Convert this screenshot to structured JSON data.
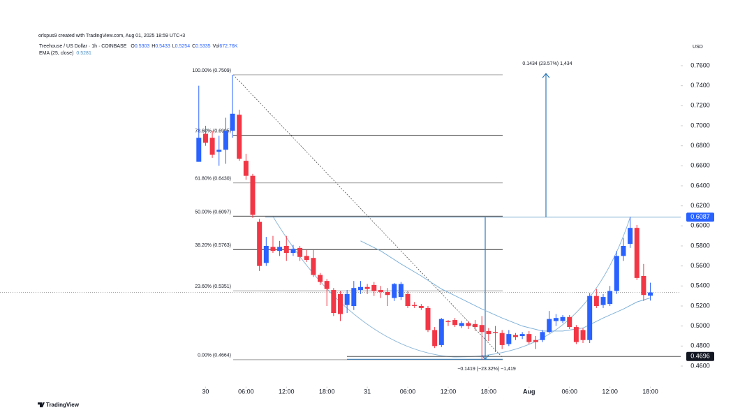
{
  "header": {
    "credit": "orlspus9 created with TradingView.com, Aug 01, 2025 18:59 UTC+3",
    "symbol": "Treehouse / US Dollar · 1h · COINBASE",
    "ohlc": [
      {
        "key": "O",
        "value": "0.5303"
      },
      {
        "key": "H",
        "value": "0.5433"
      },
      {
        "key": "L",
        "value": "0.5254"
      },
      {
        "key": "C",
        "value": "0.5335"
      },
      {
        "key": "Vol",
        "value": "672.76K"
      }
    ],
    "indicator": "EMA (25, close)",
    "indicator_value": "0.5281",
    "currency": "USD"
  },
  "footer": {
    "brand": "TradingView"
  },
  "chart_data": {
    "type": "candlestick",
    "x": [
      -1,
      0,
      1,
      2,
      3,
      4,
      5,
      6,
      7,
      8,
      9,
      10,
      11,
      12,
      13,
      14,
      15,
      16,
      17,
      18,
      19,
      20,
      21,
      22,
      23,
      24,
      25,
      26,
      27,
      28,
      29,
      30,
      31,
      32,
      33,
      34,
      35,
      36,
      37,
      38,
      39,
      40,
      41,
      42,
      43,
      44,
      45,
      46,
      47,
      48,
      49,
      50,
      51,
      52,
      53,
      54,
      55,
      56,
      57,
      58,
      59,
      60,
      61,
      62,
      63,
      64,
      65,
      66
    ],
    "open": [
      0.664,
      0.692,
      0.688,
      0.674,
      0.676,
      0.695,
      0.711,
      0.665,
      0.65,
      0.604,
      0.563,
      0.579,
      0.575,
      0.58,
      0.573,
      0.578,
      0.57,
      0.568,
      0.551,
      0.545,
      0.536,
      0.532,
      0.521,
      0.52,
      0.536,
      0.539,
      0.541,
      0.536,
      0.534,
      0.528,
      0.529,
      0.532,
      0.521,
      0.52,
      0.518,
      0.496,
      0.481,
      0.505,
      0.506,
      0.5,
      0.503,
      0.502,
      0.501,
      0.495,
      0.494,
      0.493,
      0.482,
      0.491,
      0.49,
      0.492,
      0.486,
      0.486,
      0.494,
      0.505,
      0.505,
      0.509,
      0.499,
      0.496,
      0.486,
      0.53,
      0.521,
      0.522,
      0.535,
      0.57,
      0.582,
      0.598,
      0.55,
      0.5303
    ],
    "high": [
      0.74,
      0.7,
      0.695,
      0.69,
      0.708,
      0.7509,
      0.716,
      0.672,
      0.652,
      0.607,
      0.589,
      0.59,
      0.585,
      0.59,
      0.581,
      0.58,
      0.576,
      0.576,
      0.553,
      0.547,
      0.538,
      0.535,
      0.536,
      0.545,
      0.545,
      0.542,
      0.544,
      0.54,
      0.538,
      0.543,
      0.544,
      0.535,
      0.524,
      0.522,
      0.52,
      0.499,
      0.508,
      0.506,
      0.508,
      0.505,
      0.505,
      0.506,
      0.51,
      0.498,
      0.5,
      0.496,
      0.496,
      0.493,
      0.494,
      0.495,
      0.49,
      0.496,
      0.515,
      0.512,
      0.511,
      0.511,
      0.501,
      0.498,
      0.533,
      0.537,
      0.532,
      0.54,
      0.575,
      0.588,
      0.6087,
      0.601,
      0.562,
      0.5433
    ],
    "low": [
      0.664,
      0.68,
      0.668,
      0.66,
      0.662,
      0.688,
      0.665,
      0.646,
      0.608,
      0.555,
      0.56,
      0.573,
      0.57,
      0.565,
      0.57,
      0.565,
      0.564,
      0.549,
      0.541,
      0.52,
      0.51,
      0.505,
      0.513,
      0.516,
      0.532,
      0.532,
      0.53,
      0.528,
      0.52,
      0.525,
      0.526,
      0.518,
      0.518,
      0.516,
      0.494,
      0.478,
      0.479,
      0.5,
      0.499,
      0.498,
      0.497,
      0.495,
      0.4664,
      0.485,
      0.474,
      0.477,
      0.48,
      0.486,
      0.487,
      0.482,
      0.477,
      0.484,
      0.493,
      0.5,
      0.503,
      0.497,
      0.482,
      0.483,
      0.483,
      0.518,
      0.518,
      0.52,
      0.532,
      0.565,
      0.578,
      0.546,
      0.525,
      0.5254
    ],
    "close": [
      0.688,
      0.683,
      0.671,
      0.676,
      0.695,
      0.712,
      0.667,
      0.65,
      0.611,
      0.56,
      0.58,
      0.575,
      0.579,
      0.573,
      0.577,
      0.569,
      0.566,
      0.551,
      0.544,
      0.537,
      0.513,
      0.512,
      0.532,
      0.538,
      0.539,
      0.537,
      0.535,
      0.534,
      0.531,
      0.542,
      0.542,
      0.52,
      0.52,
      0.518,
      0.496,
      0.48,
      0.507,
      0.504,
      0.501,
      0.503,
      0.5,
      0.499,
      0.494,
      0.492,
      0.493,
      0.481,
      0.492,
      0.489,
      0.492,
      0.484,
      0.484,
      0.494,
      0.507,
      0.508,
      0.509,
      0.499,
      0.484,
      0.486,
      0.53,
      0.52,
      0.529,
      0.535,
      0.57,
      0.58,
      0.598,
      0.548,
      0.531,
      0.5335
    ],
    "up_color": "#2962ff",
    "down_color": "#f23645",
    "ema": {
      "color": "#7fb1d9",
      "x": [
        23,
        26,
        29,
        32,
        35,
        38,
        41,
        44,
        47,
        50,
        53,
        56,
        59,
        62,
        64,
        66
      ],
      "values": [
        0.585,
        0.575,
        0.562,
        0.55,
        0.537,
        0.527,
        0.517,
        0.508,
        0.5,
        0.495,
        0.495,
        0.498,
        0.508,
        0.517,
        0.524,
        0.5281
      ]
    },
    "fib_levels": [
      {
        "value": 0.7509,
        "label": "100.00% (0.7509)",
        "color": "#9a9a9a"
      },
      {
        "value": 0.6905,
        "label": "78.60% (0.6905)",
        "color": "#333333"
      },
      {
        "value": 0.643,
        "label": "61.80% (0.6430)",
        "color": "#9a9a9a"
      },
      {
        "value": 0.6097,
        "label": "50.00% (0.6097)",
        "color": "#333333"
      },
      {
        "value": 0.5763,
        "label": "38.20% (0.5763)",
        "color": "#333333"
      },
      {
        "value": 0.5351,
        "label": "23.60% (0.5351)",
        "color": "#9a9a9a"
      },
      {
        "value": 0.4664,
        "label": "0.00% (0.4664)",
        "color": "#9a9a9a"
      }
    ],
    "measures": [
      {
        "label": "0.1434 (23.57%) 1,434",
        "from": 0.6087,
        "to": 0.7521
      },
      {
        "label": "−0.1419 (−23.32%) −1,419",
        "from": 0.6087,
        "to": 0.4668
      }
    ],
    "price_lines": [
      {
        "value": 0.6087,
        "color": "#2962ff"
      },
      {
        "value": 0.4696,
        "color": "#131722"
      }
    ],
    "current_price": 0.5335,
    "xlim": [
      -30.5,
      70.5
    ],
    "xticks": [
      {
        "value": 0,
        "label": "30"
      },
      {
        "value": 6,
        "label": "06:00"
      },
      {
        "value": 12,
        "label": "12:00"
      },
      {
        "value": 18,
        "label": "18:00"
      },
      {
        "value": 24,
        "label": "31"
      },
      {
        "value": 30,
        "label": "06:00"
      },
      {
        "value": 36,
        "label": "12:00"
      },
      {
        "value": 42,
        "label": "18:00"
      },
      {
        "value": 48,
        "label": "Aug"
      },
      {
        "value": 54,
        "label": "06:00"
      },
      {
        "value": 60,
        "label": "12:00"
      },
      {
        "value": 66,
        "label": "18:00"
      }
    ],
    "ylim": [
      0.445,
      0.77
    ],
    "yticks": [
      {
        "value": 0.46,
        "label": "0.4600"
      },
      {
        "value": 0.48,
        "label": "0.4800"
      },
      {
        "value": 0.5,
        "label": "0.5000"
      },
      {
        "value": 0.52,
        "label": "0.5200"
      },
      {
        "value": 0.54,
        "label": "0.5400"
      },
      {
        "value": 0.56,
        "label": "0.5600"
      },
      {
        "value": 0.58,
        "label": "0.5800"
      },
      {
        "value": 0.6,
        "label": "0.6000"
      },
      {
        "value": 0.62,
        "label": "0.6200"
      },
      {
        "value": 0.64,
        "label": "0.6400"
      },
      {
        "value": 0.66,
        "label": "0.6600"
      },
      {
        "value": 0.68,
        "label": "0.6800"
      },
      {
        "value": 0.7,
        "label": "0.7000"
      },
      {
        "value": 0.72,
        "label": "0.7200"
      },
      {
        "value": 0.74,
        "label": "0.7400"
      },
      {
        "value": 0.76,
        "label": "0.7600"
      }
    ]
  }
}
